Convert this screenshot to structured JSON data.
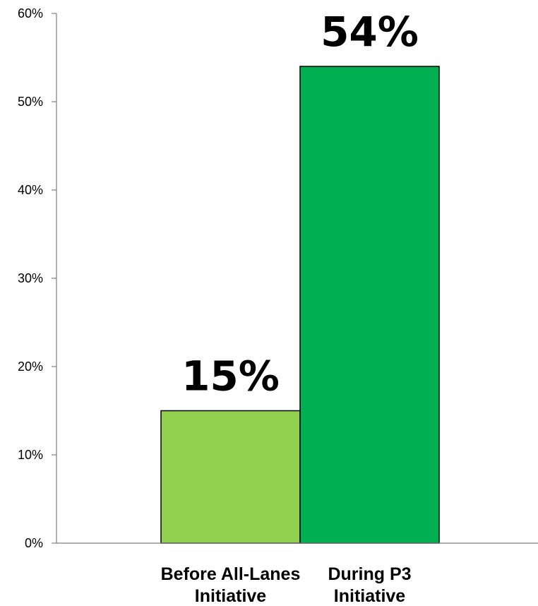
{
  "chart_data": {
    "type": "bar",
    "categories": [
      [
        "Before All-Lanes",
        "Initiative"
      ],
      [
        "During P3",
        "Initiative"
      ]
    ],
    "values": [
      15,
      54
    ],
    "data_labels": [
      "15%",
      "54%"
    ],
    "colors": [
      "#92d050",
      "#00b050"
    ],
    "ylim": [
      0,
      60
    ],
    "yticks": [
      0,
      10,
      20,
      30,
      40,
      50,
      60
    ],
    "ytick_labels": [
      "0%",
      "10%",
      "20%",
      "30%",
      "40%",
      "50%",
      "60%"
    ],
    "grid": false,
    "legend": "none"
  }
}
